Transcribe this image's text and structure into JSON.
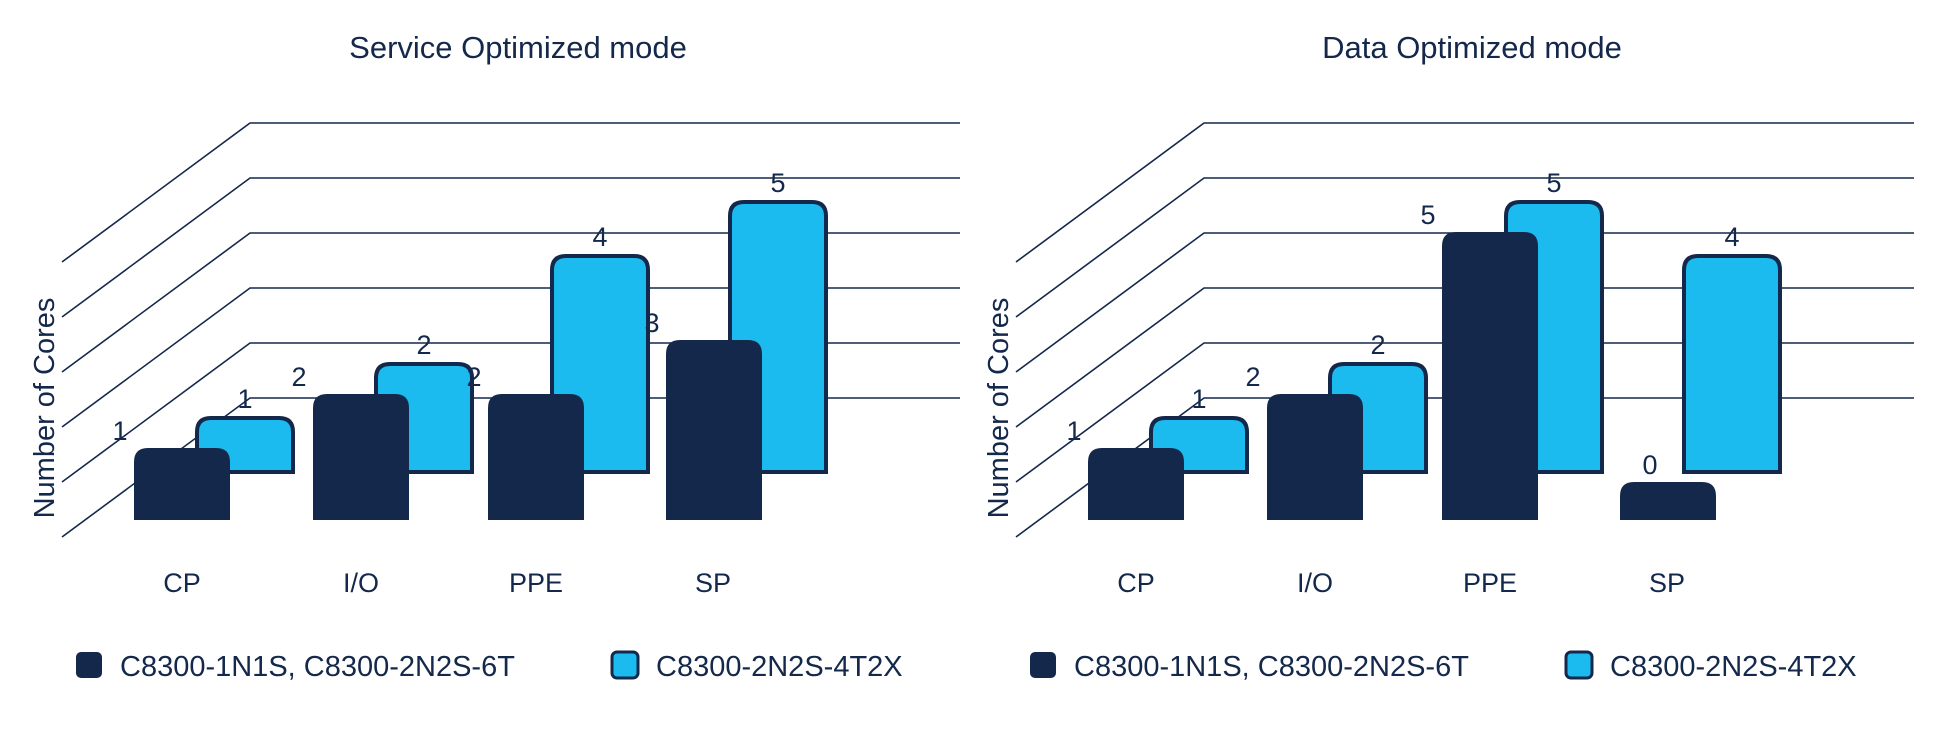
{
  "chart_data": [
    {
      "type": "bar",
      "title": "Service Optimized mode",
      "ylabel": "Number of Cores",
      "xlabel": "",
      "categories": [
        "CP",
        "I/O",
        "PPE",
        "SP"
      ],
      "ylim": [
        0,
        5
      ],
      "grid": true,
      "legend_position": "bottom",
      "series": [
        {
          "name": "C8300-1N1S, C8300-2N2S-6T",
          "values": [
            1,
            2,
            2,
            3
          ],
          "color": "#14284b"
        },
        {
          "name": "C8300-2N2S-4T2X",
          "values": [
            1,
            2,
            4,
            5
          ],
          "color": "#1bbbef"
        }
      ]
    },
    {
      "type": "bar",
      "title": "Data Optimized mode",
      "ylabel": "Number of Cores",
      "xlabel": "",
      "categories": [
        "CP",
        "I/O",
        "PPE",
        "SP"
      ],
      "ylim": [
        0,
        5
      ],
      "grid": true,
      "legend_position": "bottom",
      "series": [
        {
          "name": "C8300-1N1S, C8300-2N2S-6T",
          "values": [
            1,
            2,
            5,
            0
          ],
          "color": "#14284b"
        },
        {
          "name": "C8300-2N2S-4T2X",
          "values": [
            1,
            2,
            5,
            4
          ],
          "color": "#1bbbef"
        }
      ]
    }
  ]
}
